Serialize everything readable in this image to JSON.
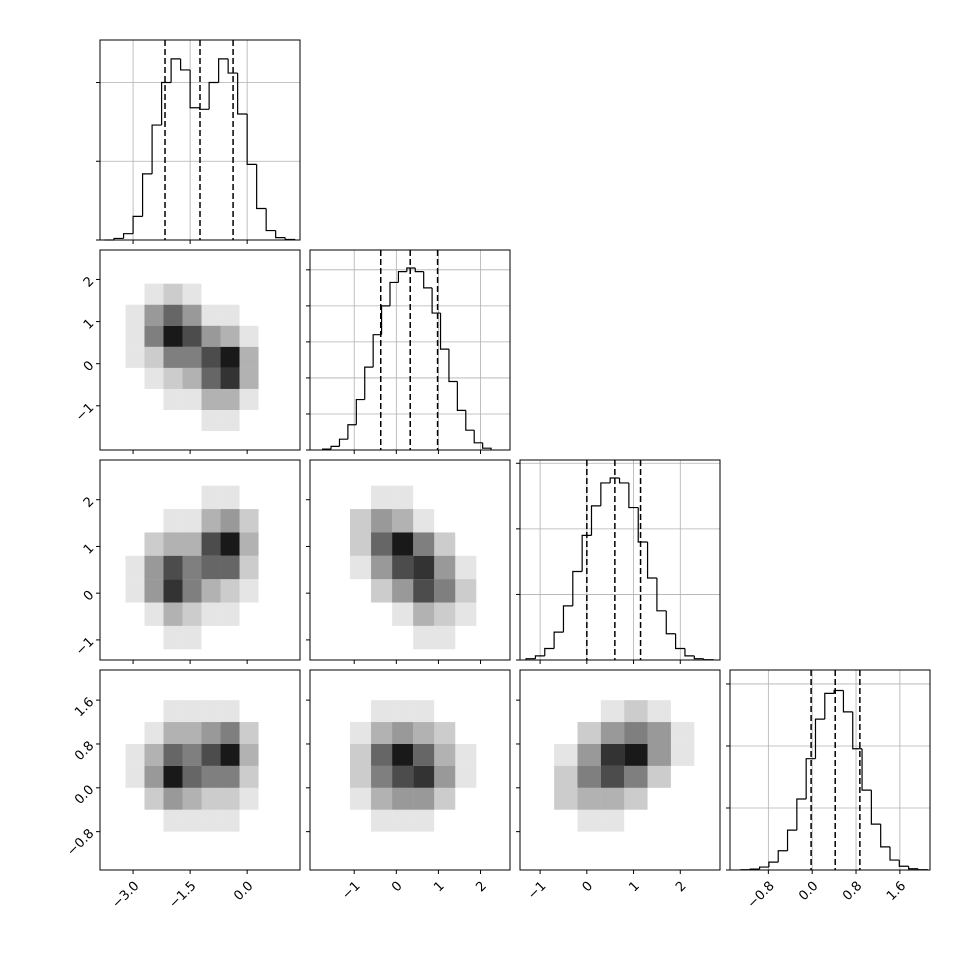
{
  "chart_data": [
    {
      "type": "histogram",
      "color": "#000000",
      "grid": true,
      "bins": [
        -3.75,
        -3.5,
        -3.25,
        -3.0,
        -2.75,
        -2.5,
        -2.25,
        -2.0,
        -1.75,
        -1.5,
        -1.25,
        -1.0,
        -0.75,
        -0.5,
        -0.25,
        0.0,
        0.25,
        0.5,
        0.75,
        1.0,
        1.25
      ],
      "values": [
        0,
        10,
        40,
        150,
        420,
        730,
        1000,
        1150,
        1080,
        840,
        830,
        1000,
        1150,
        1060,
        800,
        480,
        200,
        60,
        15,
        3
      ],
      "quantiles": [
        -2.16,
        -1.24,
        -0.37
      ],
      "xlim": [
        -3.87,
        1.39
      ],
      "xticks": [
        {
          "value": -3.0,
          "label": "−3.0"
        },
        {
          "value": -1.5,
          "label": "−1.5"
        },
        {
          "value": 0,
          "label": "0.0"
        }
      ],
      "ylim": [
        0,
        1270
      ],
      "yticks": [
        0,
        500,
        1000
      ]
    },
    {
      "type": "hist2d",
      "color": "#000000",
      "xbins": [
        -3.2,
        -2.7,
        -2.2,
        -1.7,
        -1.2,
        -0.7,
        -0.2,
        0.3,
        0.8
      ],
      "ybins": [
        -1.6,
        -1.1,
        -0.6,
        -0.1,
        0.4,
        0.9,
        1.4,
        1.9,
        2.4
      ],
      "values": [
        [
          0,
          0,
          0,
          0,
          1,
          1,
          0,
          0
        ],
        [
          0,
          0,
          1,
          1,
          3,
          3,
          1,
          0
        ],
        [
          0,
          1,
          2,
          3,
          6,
          8,
          3,
          0
        ],
        [
          1,
          2,
          5,
          5,
          7,
          9,
          3,
          0
        ],
        [
          1,
          5,
          9,
          7,
          4,
          3,
          1,
          0
        ],
        [
          1,
          4,
          6,
          4,
          1,
          1,
          0,
          0
        ],
        [
          0,
          1,
          2,
          1,
          0,
          0,
          0,
          0
        ],
        [
          0,
          0,
          0,
          0,
          0,
          0,
          0,
          0
        ]
      ],
      "xlim": [
        -3.87,
        1.39
      ],
      "xticks": [
        {
          "value": -3.0,
          "label": "−3.0"
        },
        {
          "value": -1.5,
          "label": "−1.5"
        },
        {
          "value": 0,
          "label": "0.0"
        }
      ],
      "ylim": [
        -2.05,
        2.7
      ],
      "yticks": [
        {
          "value": -1,
          "label": "−1"
        },
        0,
        1,
        2
      ]
    },
    {
      "type": "histogram",
      "color": "#000000",
      "grid": true,
      "bins": [
        -1.75,
        -1.55,
        -1.35,
        -1.15,
        -0.95,
        -0.75,
        -0.55,
        -0.35,
        -0.15,
        0.05,
        0.25,
        0.45,
        0.65,
        0.85,
        1.05,
        1.25,
        1.45,
        1.65,
        1.85,
        2.05,
        2.25
      ],
      "values": [
        5,
        20,
        60,
        140,
        280,
        460,
        640,
        800,
        930,
        990,
        1010,
        990,
        900,
        760,
        560,
        380,
        220,
        110,
        40,
        10
      ],
      "quantiles": [
        -0.37,
        0.33,
        0.98
      ],
      "xlim": [
        -2.05,
        2.7
      ],
      "xticks": [
        {
          "value": -1,
          "label": "−1"
        },
        0,
        1,
        2
      ],
      "ylim": [
        0,
        1110
      ],
      "yticks": [
        0,
        200,
        400,
        600,
        800,
        1000
      ]
    },
    {
      "type": "hist2d",
      "color": "#000000",
      "xbins": [
        -3.2,
        -2.7,
        -2.2,
        -1.7,
        -1.2,
        -0.7,
        -0.2,
        0.3,
        0.8
      ],
      "ybins": [
        -1.2,
        -0.7,
        -0.2,
        0.3,
        0.8,
        1.3,
        1.8,
        2.3,
        2.8
      ],
      "values": [
        [
          0,
          0,
          1,
          1,
          0,
          0,
          0,
          0
        ],
        [
          0,
          1,
          3,
          2,
          1,
          1,
          0,
          0
        ],
        [
          1,
          4,
          8,
          5,
          3,
          2,
          1,
          0
        ],
        [
          1,
          4,
          7,
          5,
          6,
          6,
          2,
          0
        ],
        [
          0,
          2,
          3,
          3,
          7,
          9,
          3,
          0
        ],
        [
          0,
          0,
          1,
          1,
          3,
          4,
          2,
          0
        ],
        [
          0,
          0,
          0,
          0,
          1,
          1,
          0,
          0
        ],
        [
          0,
          0,
          0,
          0,
          0,
          0,
          0,
          0
        ]
      ],
      "xlim": [
        -3.87,
        1.39
      ],
      "xticks": [
        {
          "value": -3.0,
          "label": "−3.0"
        },
        {
          "value": -1.5,
          "label": "−1.5"
        },
        {
          "value": 0,
          "label": "0.0"
        }
      ],
      "ylim": [
        -1.43,
        2.85
      ],
      "yticks": [
        {
          "value": -1,
          "label": "−1"
        },
        0,
        1,
        2
      ]
    },
    {
      "type": "hist2d",
      "color": "#000000",
      "xbins": [
        -1.6,
        -1.1,
        -0.6,
        -0.1,
        0.4,
        0.9,
        1.4,
        1.9,
        2.4
      ],
      "ybins": [
        -1.2,
        -0.7,
        -0.2,
        0.3,
        0.8,
        1.3,
        1.8,
        2.3,
        2.8
      ],
      "values": [
        [
          0,
          0,
          0,
          0,
          1,
          1,
          0,
          0
        ],
        [
          0,
          0,
          0,
          1,
          3,
          2,
          1,
          0
        ],
        [
          0,
          0,
          2,
          4,
          7,
          5,
          2,
          0
        ],
        [
          0,
          1,
          4,
          7,
          8,
          4,
          1,
          0
        ],
        [
          0,
          2,
          6,
          9,
          5,
          2,
          0,
          0
        ],
        [
          0,
          2,
          4,
          3,
          1,
          0,
          0,
          0
        ],
        [
          0,
          0,
          1,
          1,
          0,
          0,
          0,
          0
        ],
        [
          0,
          0,
          0,
          0,
          0,
          0,
          0,
          0
        ]
      ],
      "xlim": [
        -2.05,
        2.7
      ],
      "xticks": [
        {
          "value": -1,
          "label": "−1"
        },
        0,
        1,
        2
      ],
      "ylim": [
        -1.43,
        2.85
      ],
      "yticks": [
        {
          "value": -1,
          "label": "−1"
        },
        0,
        1,
        2
      ]
    },
    {
      "type": "histogram",
      "color": "#000000",
      "grid": true,
      "bins": [
        -1.3,
        -1.1,
        -0.9,
        -0.7,
        -0.5,
        -0.3,
        -0.1,
        0.1,
        0.3,
        0.5,
        0.7,
        0.9,
        1.1,
        1.3,
        1.5,
        1.7,
        1.9,
        2.1,
        2.3,
        2.5,
        2.7
      ],
      "values": [
        8,
        25,
        70,
        170,
        330,
        540,
        760,
        940,
        1080,
        1110,
        1080,
        930,
        720,
        500,
        300,
        160,
        70,
        25,
        8,
        2
      ],
      "quantiles": [
        0.0,
        0.6,
        1.15
      ],
      "xlim": [
        -1.43,
        2.85
      ],
      "xticks": [
        {
          "value": -1,
          "label": "−1"
        },
        0,
        1,
        2
      ],
      "ylim": [
        0,
        1220
      ],
      "yticks": [
        0,
        400,
        800,
        1200
      ]
    },
    {
      "type": "hist2d",
      "color": "#000000",
      "xbins": [
        -3.2,
        -2.7,
        -2.2,
        -1.7,
        -1.2,
        -0.7,
        -0.2,
        0.3,
        0.8
      ],
      "ybins": [
        -1.2,
        -0.8,
        -0.4,
        0.0,
        0.4,
        0.8,
        1.2,
        1.6,
        2.0
      ],
      "values": [
        [
          0,
          0,
          0,
          0,
          0,
          0,
          0,
          0
        ],
        [
          0,
          0,
          1,
          1,
          1,
          1,
          0,
          0
        ],
        [
          0,
          2,
          4,
          3,
          2,
          2,
          1,
          0
        ],
        [
          1,
          4,
          9,
          6,
          5,
          5,
          2,
          0
        ],
        [
          1,
          3,
          6,
          5,
          7,
          9,
          3,
          0
        ],
        [
          0,
          1,
          3,
          3,
          4,
          5,
          2,
          0
        ],
        [
          0,
          0,
          1,
          1,
          1,
          1,
          0,
          0
        ],
        [
          0,
          0,
          0,
          0,
          0,
          0,
          0,
          0
        ]
      ],
      "xlim": [
        -3.87,
        1.39
      ],
      "xticks": [
        {
          "value": -3.0,
          "label": "−3.0"
        },
        {
          "value": -1.5,
          "label": "−1.5"
        },
        {
          "value": 0,
          "label": "0.0"
        }
      ],
      "ylim": [
        -1.5,
        2.15
      ],
      "yticks": [
        {
          "value": -0.8,
          "label": "−0.8"
        },
        {
          "value": 0,
          "label": "0.0"
        },
        0.8,
        1.6
      ]
    },
    {
      "type": "hist2d",
      "color": "#000000",
      "xbins": [
        -1.6,
        -1.1,
        -0.6,
        -0.1,
        0.4,
        0.9,
        1.4,
        1.9,
        2.4
      ],
      "ybins": [
        -1.2,
        -0.8,
        -0.4,
        0.0,
        0.4,
        0.8,
        1.2,
        1.6,
        2.0
      ],
      "values": [
        [
          0,
          0,
          0,
          0,
          0,
          0,
          0,
          0
        ],
        [
          0,
          0,
          1,
          1,
          1,
          0,
          0,
          0
        ],
        [
          0,
          1,
          3,
          4,
          4,
          2,
          0,
          0
        ],
        [
          0,
          2,
          5,
          7,
          8,
          4,
          1,
          0
        ],
        [
          0,
          2,
          6,
          9,
          6,
          3,
          1,
          0
        ],
        [
          0,
          1,
          3,
          4,
          3,
          2,
          0,
          0
        ],
        [
          0,
          0,
          1,
          1,
          1,
          0,
          0,
          0
        ],
        [
          0,
          0,
          0,
          0,
          0,
          0,
          0,
          0
        ]
      ],
      "xlim": [
        -2.05,
        2.7
      ],
      "xticks": [
        {
          "value": -1,
          "label": "−1"
        },
        0,
        1,
        2
      ],
      "ylim": [
        -1.5,
        2.15
      ],
      "yticks": [
        {
          "value": -0.8,
          "label": "−0.8"
        },
        {
          "value": 0,
          "label": "0.0"
        },
        0.8,
        1.6
      ]
    },
    {
      "type": "hist2d",
      "color": "#000000",
      "xbins": [
        -1.2,
        -0.7,
        -0.2,
        0.3,
        0.8,
        1.3,
        1.8,
        2.3,
        2.8
      ],
      "ybins": [
        -1.2,
        -0.8,
        -0.4,
        0.0,
        0.4,
        0.8,
        1.2,
        1.6,
        2.0
      ],
      "values": [
        [
          0,
          0,
          0,
          0,
          0,
          0,
          0,
          0
        ],
        [
          0,
          0,
          1,
          1,
          0,
          0,
          0,
          0
        ],
        [
          0,
          2,
          3,
          3,
          2,
          0,
          0,
          0
        ],
        [
          0,
          2,
          5,
          7,
          5,
          2,
          0,
          0
        ],
        [
          0,
          1,
          4,
          8,
          9,
          4,
          1,
          0
        ],
        [
          0,
          0,
          2,
          4,
          5,
          4,
          1,
          0
        ],
        [
          0,
          0,
          0,
          1,
          2,
          1,
          0,
          0
        ],
        [
          0,
          0,
          0,
          0,
          0,
          0,
          0,
          0
        ]
      ],
      "xlim": [
        -1.43,
        2.85
      ],
      "xticks": [
        {
          "value": -1,
          "label": "−1"
        },
        0,
        1,
        2
      ],
      "ylim": [
        -1.5,
        2.15
      ],
      "yticks": [
        {
          "value": -0.8,
          "label": "−0.8"
        },
        {
          "value": 0,
          "label": "0.0"
        },
        0.8,
        1.6
      ]
    },
    {
      "type": "histogram",
      "color": "#000000",
      "grid": true,
      "bins": [
        -1.3,
        -1.13,
        -0.96,
        -0.79,
        -0.62,
        -0.45,
        -0.28,
        -0.11,
        0.06,
        0.23,
        0.4,
        0.57,
        0.74,
        0.91,
        1.08,
        1.25,
        1.42,
        1.59,
        1.76,
        1.93,
        2.1
      ],
      "values": [
        2,
        6,
        19,
        51,
        124,
        257,
        458,
        718,
        973,
        1139,
        1158,
        1020,
        782,
        515,
        296,
        149,
        64,
        24,
        8,
        2
      ],
      "quantiles": [
        -0.02,
        0.42,
        0.87
      ],
      "xlim": [
        -1.5,
        2.15
      ],
      "xticks": [
        {
          "value": -0.8,
          "label": "−0.8"
        },
        {
          "value": 0,
          "label": "0.0"
        },
        0.8,
        1.6
      ],
      "ylim": [
        0,
        1290
      ],
      "yticks": [
        0,
        400,
        800,
        1200
      ]
    }
  ]
}
